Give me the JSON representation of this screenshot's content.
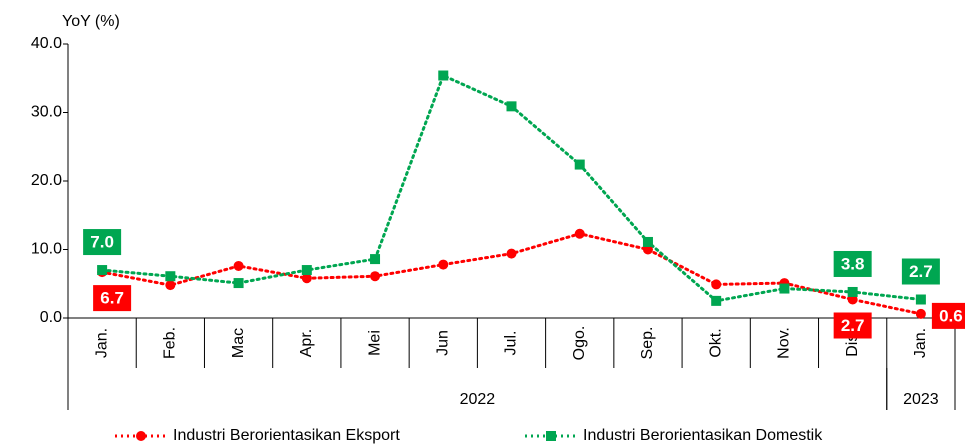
{
  "chart_data": {
    "type": "line",
    "y_axis_label": "YoY (%)",
    "categories": [
      "Jan.",
      "Feb.",
      "Mac",
      "Apr.",
      "Mei",
      "Jun",
      "Jul.",
      "Ogo.",
      "Sep.",
      "Okt.",
      "Nov.",
      "Dis.",
      "Jan."
    ],
    "groups": [
      {
        "label": "2022",
        "span": 12
      },
      {
        "label": "2023",
        "span": 1
      }
    ],
    "series": [
      {
        "name": "Industri Berorientasikan Eksport",
        "color": "#ff0000",
        "marker": "circle",
        "values": [
          6.7,
          4.8,
          7.6,
          5.8,
          6.1,
          7.8,
          9.4,
          12.3,
          10.0,
          4.9,
          5.1,
          2.7,
          0.6
        ],
        "value_labels": [
          "6.7",
          null,
          null,
          null,
          null,
          null,
          null,
          null,
          null,
          null,
          null,
          "2.7",
          "0.6"
        ]
      },
      {
        "name": "Industri Berorientasikan Domestik",
        "color": "#00a651",
        "marker": "square",
        "values": [
          7.0,
          6.1,
          5.1,
          7.0,
          8.6,
          35.4,
          30.9,
          22.4,
          11.1,
          2.5,
          4.3,
          3.8,
          2.7
        ],
        "value_labels": [
          "7.0",
          null,
          null,
          null,
          null,
          null,
          null,
          null,
          null,
          null,
          null,
          "3.8",
          "2.7"
        ]
      }
    ],
    "ylim": [
      0,
      40
    ],
    "yticks": [
      {
        "value": 0,
        "label": "0.0"
      },
      {
        "value": 10,
        "label": "10.0"
      },
      {
        "value": 20,
        "label": "20.0"
      },
      {
        "value": 30,
        "label": "30.0"
      },
      {
        "value": 40,
        "label": "40.0"
      }
    ],
    "grid": false
  }
}
